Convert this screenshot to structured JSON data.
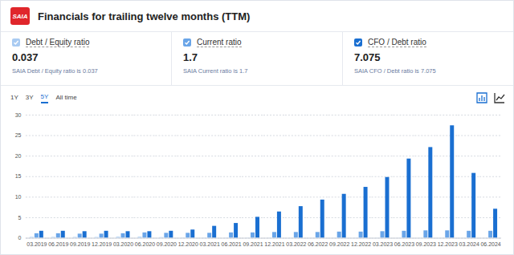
{
  "header": {
    "logo": "SAIA",
    "title": "Financials for trailing twelve months (TTM)"
  },
  "cards": [
    {
      "label": "Debt / Equity ratio",
      "value": "0.037",
      "note": "SAIA Debt / Equity ratio is 0.037"
    },
    {
      "label": "Current ratio",
      "value": "1.7",
      "note": "SAIA Current ratio is 1.7"
    },
    {
      "label": "CFO / Debt ratio",
      "value": "7.075",
      "note": "SAIA CFO / Debt ratio is 7.075"
    }
  ],
  "tabs": {
    "items": [
      "1Y",
      "3Y",
      "5Y",
      "All time"
    ],
    "active": "5Y"
  },
  "chart_data": {
    "type": "bar",
    "categories": [
      "03.2019",
      "06.2019",
      "09.2019",
      "12.2019",
      "03.2020",
      "06.2020",
      "09.2020",
      "12.2020",
      "03.2021",
      "06.2021",
      "09.2021",
      "12.2021",
      "03.2022",
      "06.2022",
      "09.2022",
      "12.2022",
      "03.2023",
      "06.2023",
      "09.2023",
      "12.2023",
      "03.2024",
      "06.2024"
    ],
    "series": [
      {
        "name": "Debt / Equity ratio",
        "color": "#a9cbf2",
        "values": [
          0.2,
          0.2,
          0.19,
          0.18,
          0.25,
          0.25,
          0.15,
          0.1,
          0.07,
          0.06,
          0.06,
          0.05,
          0.05,
          0.05,
          0.04,
          0.04,
          0.04,
          0.04,
          0.04,
          0.04,
          0.04,
          0.037
        ]
      },
      {
        "name": "Current ratio",
        "color": "#6aa5e8",
        "values": [
          1.1,
          1.1,
          1.0,
          1.0,
          1.1,
          1.3,
          1.2,
          1.2,
          1.2,
          1.3,
          1.3,
          1.4,
          1.4,
          1.4,
          1.5,
          1.5,
          1.6,
          1.7,
          1.8,
          1.8,
          1.7,
          1.7
        ]
      },
      {
        "name": "CFO / Debt ratio",
        "color": "#1a6fd1",
        "values": [
          1.7,
          1.7,
          1.6,
          1.7,
          1.6,
          1.6,
          1.7,
          2.0,
          2.9,
          3.6,
          5.1,
          6.4,
          7.7,
          9.3,
          10.7,
          12.4,
          14.8,
          19.3,
          22.1,
          27.4,
          15.8,
          7.075
        ]
      }
    ],
    "ylim": [
      0,
      30
    ],
    "yticks": [
      0,
      5,
      10,
      15,
      20,
      25,
      30
    ],
    "grid": true
  }
}
